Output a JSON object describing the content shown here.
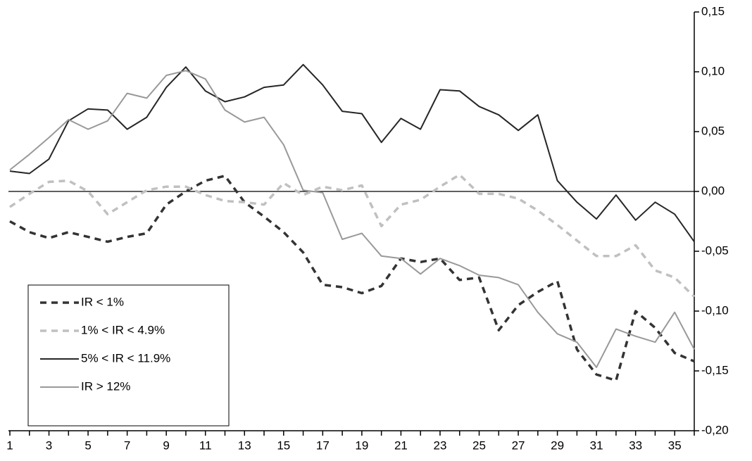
{
  "chart_data": {
    "type": "line",
    "categories": [
      1,
      null,
      3,
      null,
      5,
      null,
      7,
      null,
      9,
      null,
      11,
      null,
      13,
      null,
      15,
      null,
      17,
      null,
      19,
      null,
      21,
      null,
      23,
      null,
      25,
      null,
      27,
      null,
      29,
      null,
      31,
      null,
      33,
      null,
      35,
      null
    ],
    "series": [
      {
        "name": "IR < 1%",
        "color": "#333333",
        "dashed": true,
        "values": [
          -0.025,
          -0.034,
          -0.039,
          -0.034,
          -0.038,
          -0.042,
          -0.038,
          -0.035,
          -0.011,
          0.0,
          0.009,
          0.013,
          -0.009,
          -0.021,
          -0.034,
          -0.051,
          -0.078,
          -0.08,
          -0.085,
          -0.079,
          -0.056,
          -0.059,
          -0.056,
          -0.074,
          -0.072,
          -0.116,
          -0.095,
          -0.084,
          -0.075,
          -0.132,
          -0.153,
          -0.158,
          -0.1,
          -0.114,
          -0.135,
          -0.142
        ]
      },
      {
        "name": "1% < IR < 4.9%",
        "color": "#c0c0c0",
        "dashed": true,
        "values": [
          -0.013,
          -0.002,
          0.008,
          0.009,
          0.0,
          -0.019,
          -0.009,
          0.001,
          0.004,
          0.004,
          -0.003,
          -0.008,
          -0.009,
          -0.011,
          0.007,
          -0.003,
          0.004,
          0.001,
          0.005,
          -0.029,
          -0.011,
          -0.007,
          0.004,
          0.014,
          -0.002,
          -0.002,
          -0.006,
          -0.016,
          -0.028,
          -0.041,
          -0.054,
          -0.054,
          -0.045,
          -0.066,
          -0.072,
          -0.088
        ]
      },
      {
        "name": "5% < IR < 11.9%",
        "color": "#262626",
        "dashed": false,
        "values": [
          0.017,
          0.015,
          0.027,
          0.059,
          0.069,
          0.068,
          0.052,
          0.062,
          0.087,
          0.104,
          0.084,
          0.075,
          0.079,
          0.087,
          0.089,
          0.106,
          0.089,
          0.067,
          0.065,
          0.041,
          0.061,
          0.052,
          0.085,
          0.084,
          0.071,
          0.064,
          0.051,
          0.064,
          0.009,
          -0.009,
          -0.023,
          -0.003,
          -0.024,
          -0.009,
          -0.019,
          -0.042
        ]
      },
      {
        "name": "IR > 12%",
        "color": "#999999",
        "dashed": false,
        "values": [
          0.018,
          0.031,
          0.045,
          0.06,
          0.052,
          0.059,
          0.082,
          0.078,
          0.097,
          0.101,
          0.094,
          0.068,
          0.058,
          0.062,
          0.039,
          0.001,
          -0.001,
          -0.04,
          -0.035,
          -0.054,
          -0.056,
          -0.069,
          -0.056,
          -0.062,
          -0.07,
          -0.072,
          -0.078,
          -0.101,
          -0.119,
          -0.126,
          -0.147,
          -0.115,
          -0.121,
          -0.126,
          -0.101,
          -0.132
        ]
      }
    ],
    "ylim": [
      -0.2,
      0.15
    ],
    "yticks": [
      {
        "value": -0.2,
        "label": "-0,20"
      },
      {
        "value": -0.15,
        "label": "-0,15"
      },
      {
        "value": -0.1,
        "label": "-0,10"
      },
      {
        "value": -0.05,
        "label": "-0,05"
      },
      {
        "value": 0,
        "label": "0,00"
      },
      {
        "value": 0.05,
        "label": "0,05"
      },
      {
        "value": 0.1,
        "label": "0,10"
      },
      {
        "value": 0.15,
        "label": "0,15"
      }
    ],
    "y_axis_side": "right",
    "legend_position": "lower left"
  }
}
